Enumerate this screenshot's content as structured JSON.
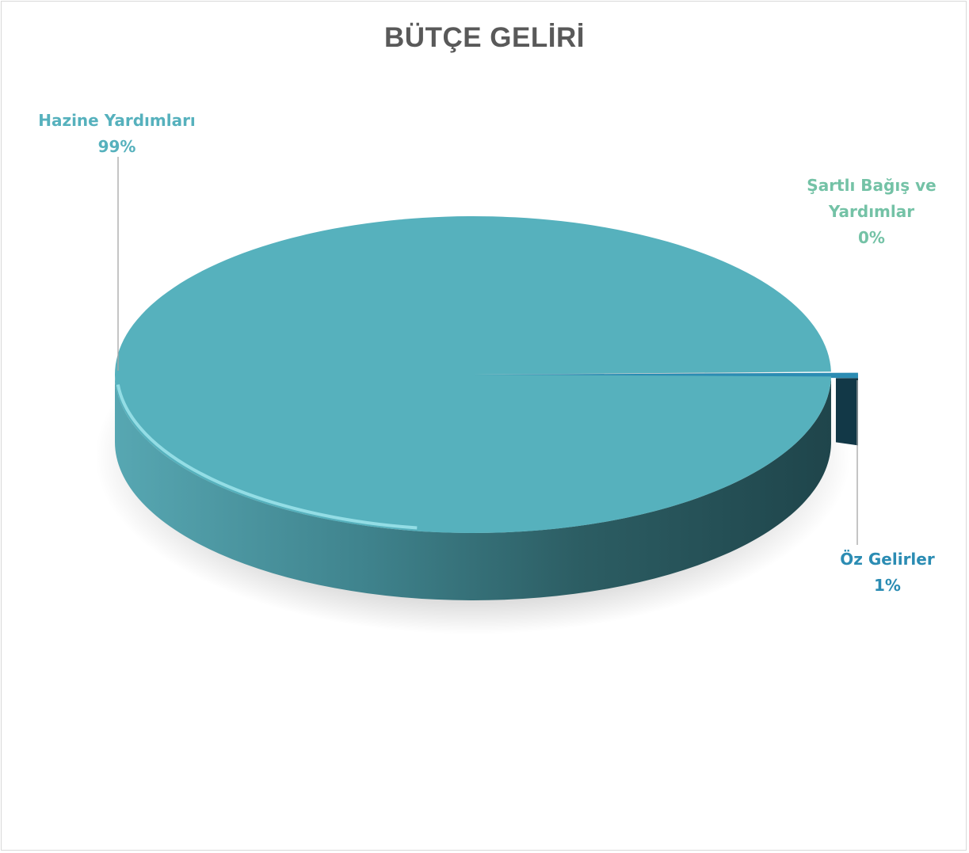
{
  "chart_data": {
    "type": "pie",
    "title": "BÜTÇE GELİRİ",
    "slices": [
      {
        "name": "Hazine Yardımları",
        "value": 99,
        "label": "99%",
        "color": "#56b1bd"
      },
      {
        "name": "Öz Gelirler",
        "value": 1,
        "label": "1%",
        "color": "#2b8cb3"
      },
      {
        "name": "Şartlı Bağış ve Yardımlar",
        "value": 0,
        "label": "0%",
        "color": "#2f9aa0"
      }
    ],
    "label_colors": {
      "Hazine Yardımları": "#56b1bd",
      "Öz Gelirler": "#2b8cb3",
      "Şartlı Bağış ve Yardımlar": "#74c2a6"
    },
    "legend": "none",
    "style": "3d"
  }
}
